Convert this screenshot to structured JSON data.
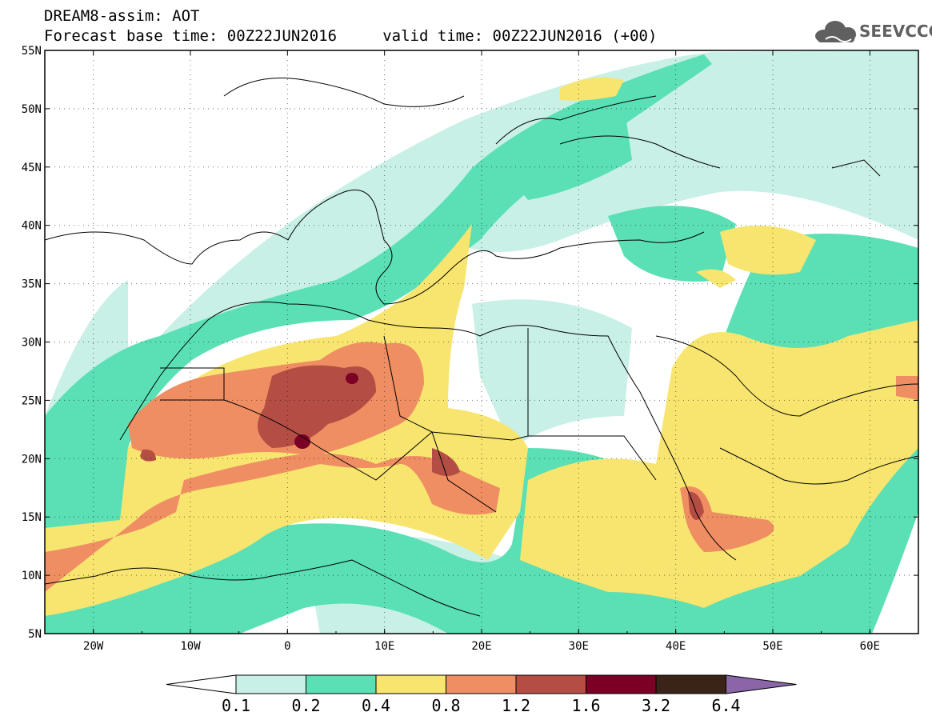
{
  "header": {
    "line1": "DREAM8-assim: AOT",
    "line2": "Forecast base time: 00Z22JUN2016     valid time: 00Z22JUN2016 (+00)"
  },
  "logo": {
    "text": "SEEVCCC",
    "icon": "cloud-icon"
  },
  "map": {
    "lon_range": [
      -25,
      65
    ],
    "lat_range": [
      5,
      55
    ],
    "lon_ticks": [
      "20W",
      "10W",
      "0",
      "10E",
      "20E",
      "30E",
      "40E",
      "50E",
      "60E"
    ],
    "lat_ticks": [
      "5N",
      "10N",
      "15N",
      "20N",
      "25N",
      "30N",
      "35N",
      "40N",
      "45N",
      "50N",
      "55N"
    ],
    "grid": "dotted"
  },
  "legend": {
    "levels": [
      "0.1",
      "0.2",
      "0.4",
      "0.8",
      "1.2",
      "1.6",
      "3.2",
      "6.4"
    ],
    "colors": [
      "#ffffff",
      "#c8f0e6",
      "#5ae0b4",
      "#f7e56f",
      "#ef8e62",
      "#b44e45",
      "#7a0026",
      "#3a2417",
      "#8a66a8"
    ]
  }
}
